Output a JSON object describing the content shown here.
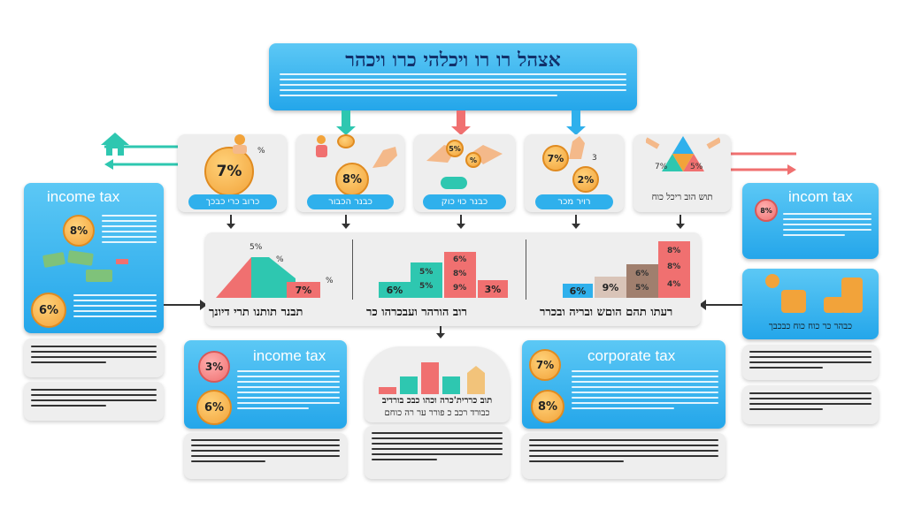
{
  "title": "אצהל רו רו ויכלהי כרו ויכהר",
  "top_steps": [
    {
      "label": "כרוב כרי כבכך",
      "coin_main": "7%",
      "coin_small": "%"
    },
    {
      "label": "כבנר הכבור",
      "coin_main": "8%"
    },
    {
      "label": "כבנר כוי כוק",
      "coin_main": "5%",
      "coin_b": "%"
    },
    {
      "label": "רויר מכר",
      "coin_main": "7%",
      "coin_b": "2%",
      "coin_note": "3"
    },
    {
      "label": "תוש הוב ריכל כוח",
      "coin_main": "7%",
      "coin_b": "5%"
    }
  ],
  "left_panel": {
    "title": "income tax",
    "coin_top": "8%",
    "coin_bottom": "6%"
  },
  "right_panel": {
    "title": "incom tax",
    "coin": "8%",
    "bottom_label": "כבהר כר כוח כוח כבכבך"
  },
  "middle": {
    "left_chart": {
      "label": "תבנר תותנו תרי דיונך",
      "percent_small_a": "%",
      "percent_small_b": "%",
      "percent_top": "5%",
      "value": "7%"
    },
    "center_chart": {
      "label": "רוב הורהר ועבכרהו כר",
      "v1": "6%",
      "v2a": "5%",
      "v2b": "5%",
      "v3a": "6%",
      "v3b": "8%",
      "v3c": "9%",
      "v4": "3%"
    },
    "right_chart": {
      "label": "רעתו תהם הוםש ובריה ובכרר",
      "v1": "6%",
      "v2": "9%",
      "v3a": "6%",
      "v3b": "5%",
      "v4a": "8%",
      "v4b": "8%",
      "v4c": "4%"
    }
  },
  "bottom_left": {
    "title": "income tax",
    "coin_a": "3%",
    "coin_b": "6%"
  },
  "bottom_center": {
    "label_line1": "תוב כררית'כרה וכהו כבכ בורדיב",
    "label_line2": "כבורד רכב כ פורר ער רה כוחם"
  },
  "bottom_right": {
    "title": "corporate tax",
    "coin_a": "7%",
    "coin_b": "8%"
  },
  "colors": {
    "blue": "#2fb0ec",
    "teal": "#2ec7b0",
    "coral": "#f07070",
    "orange": "#f2a33a",
    "brown": "#a07f6e"
  }
}
